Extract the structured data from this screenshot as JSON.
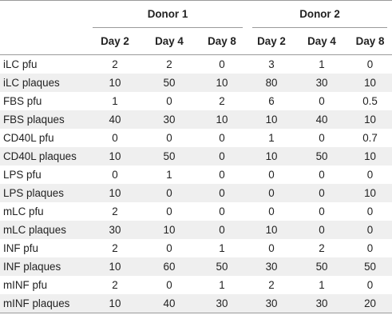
{
  "header": {
    "donor1": "Donor 1",
    "donor2": "Donor 2",
    "days": [
      "Day 2",
      "Day 4",
      "Day 8",
      "Day 2",
      "Day 4",
      "Day 8"
    ]
  },
  "rows": [
    {
      "label": "iLC pfu",
      "values": [
        "2",
        "2",
        "0",
        "3",
        "1",
        "0"
      ]
    },
    {
      "label": "iLC plaques",
      "values": [
        "10",
        "50",
        "10",
        "80",
        "30",
        "10"
      ]
    },
    {
      "label": "FBS pfu",
      "values": [
        "1",
        "0",
        "2",
        "6",
        "0",
        "0.5"
      ]
    },
    {
      "label": "FBS plaques",
      "values": [
        "40",
        "30",
        "10",
        "10",
        "40",
        "10"
      ]
    },
    {
      "label": "CD40L pfu",
      "values": [
        "0",
        "0",
        "0",
        "1",
        "0",
        "0.7"
      ]
    },
    {
      "label": "CD40L plaques",
      "values": [
        "10",
        "50",
        "0",
        "10",
        "50",
        "10"
      ]
    },
    {
      "label": "LPS pfu",
      "values": [
        "0",
        "1",
        "0",
        "0",
        "0",
        "0"
      ]
    },
    {
      "label": "LPS plaques",
      "values": [
        "10",
        "0",
        "0",
        "0",
        "0",
        "10"
      ]
    },
    {
      "label": "mLC pfu",
      "values": [
        "2",
        "0",
        "0",
        "0",
        "0",
        "0"
      ]
    },
    {
      "label": "mLC plaques",
      "values": [
        "30",
        "10",
        "0",
        "10",
        "0",
        "0"
      ]
    },
    {
      "label": "INF pfu",
      "values": [
        "2",
        "0",
        "1",
        "0",
        "2",
        "0"
      ]
    },
    {
      "label": "INF plaques",
      "values": [
        "10",
        "60",
        "50",
        "30",
        "50",
        "50"
      ]
    },
    {
      "label": "mINF pfu",
      "values": [
        "2",
        "0",
        "1",
        "2",
        "1",
        "0"
      ]
    },
    {
      "label": "mINF plaques",
      "values": [
        "10",
        "40",
        "30",
        "30",
        "30",
        "20"
      ]
    }
  ]
}
